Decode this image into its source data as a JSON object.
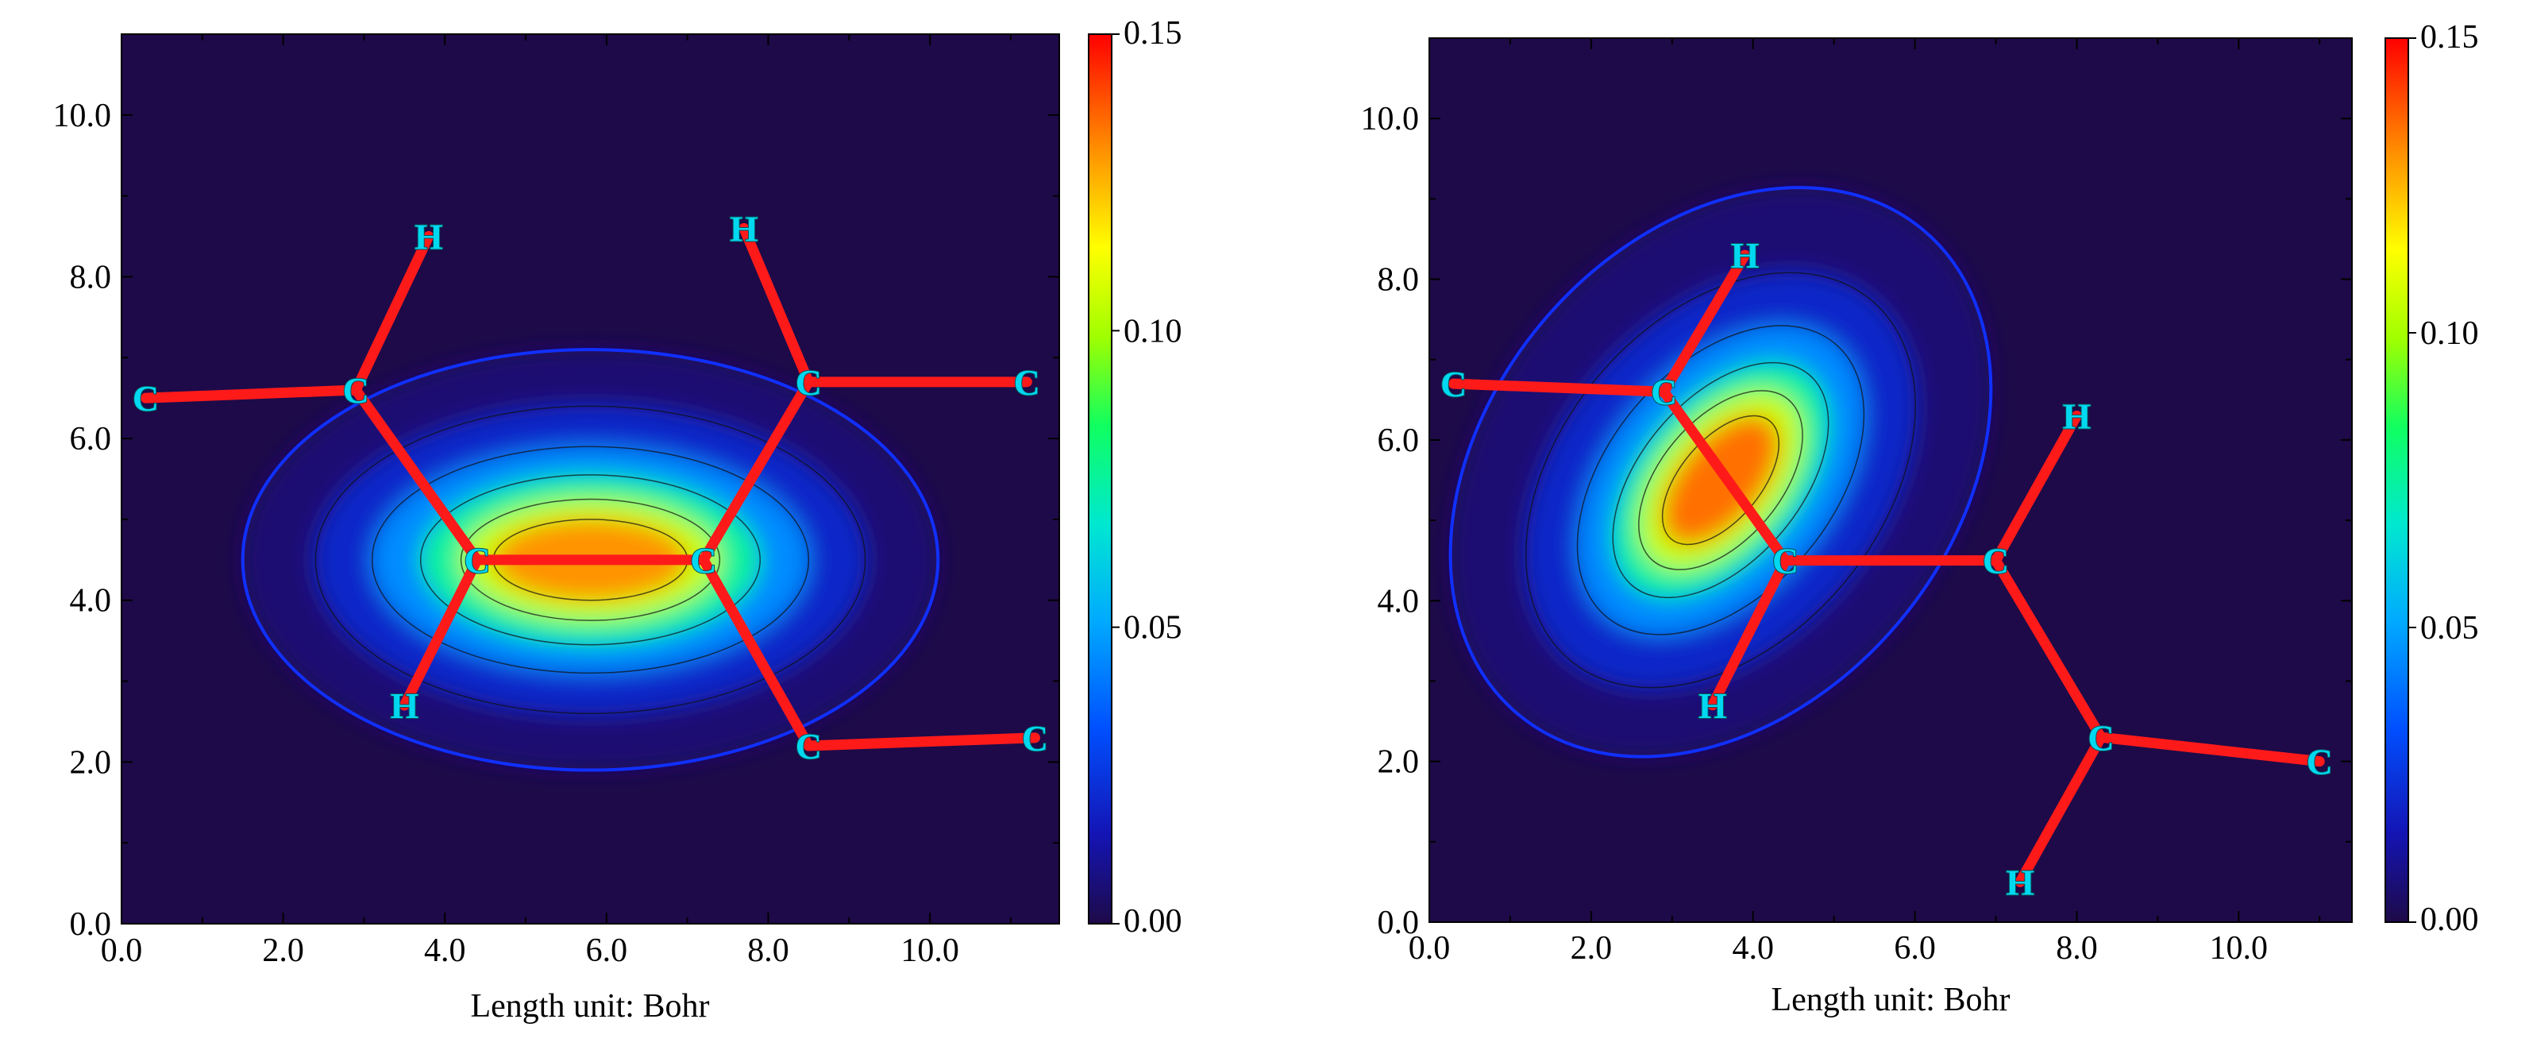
{
  "chart_data": [
    {
      "type": "heatmap",
      "subtype": "contour-map",
      "title": "",
      "xlabel": "Length unit: Bohr",
      "ylabel": "",
      "xlim": [
        0.0,
        11.6
      ],
      "ylim": [
        0.0,
        11.0
      ],
      "xticks": [
        "0.0",
        "2.0",
        "4.0",
        "6.0",
        "8.0",
        "10.0"
      ],
      "yticks": [
        "0.0",
        "2.0",
        "4.0",
        "6.0",
        "8.0",
        "10.0"
      ],
      "colorbar": {
        "min": 0.0,
        "max": 0.15,
        "ticks": [
          "0.00",
          "0.05",
          "0.10",
          "0.15"
        ]
      },
      "grid": false,
      "atoms": [
        {
          "label": "C",
          "x": 0.3,
          "y": 6.5
        },
        {
          "label": "C",
          "x": 2.9,
          "y": 6.6
        },
        {
          "label": "H",
          "x": 3.8,
          "y": 8.5
        },
        {
          "label": "C",
          "x": 4.4,
          "y": 4.5
        },
        {
          "label": "H",
          "x": 3.5,
          "y": 2.7
        },
        {
          "label": "C",
          "x": 7.2,
          "y": 4.5
        },
        {
          "label": "C",
          "x": 8.5,
          "y": 6.7
        },
        {
          "label": "H",
          "x": 7.7,
          "y": 8.6
        },
        {
          "label": "C",
          "x": 11.2,
          "y": 6.7
        },
        {
          "label": "C",
          "x": 8.5,
          "y": 2.2
        },
        {
          "label": "C",
          "x": 11.3,
          "y": 2.3
        }
      ],
      "bonds": [
        [
          0,
          1
        ],
        [
          1,
          2
        ],
        [
          1,
          3
        ],
        [
          3,
          4
        ],
        [
          3,
          5
        ],
        [
          5,
          6
        ],
        [
          6,
          7
        ],
        [
          6,
          8
        ],
        [
          5,
          9
        ],
        [
          9,
          10
        ]
      ],
      "density_lobes": [
        {
          "cx": 5.8,
          "cy": 4.5,
          "rx": 4.3,
          "ry": 2.6,
          "angle_deg": 0,
          "value": 0.006
        },
        {
          "cx": 5.8,
          "cy": 4.5,
          "rx": 3.4,
          "ry": 1.9,
          "angle_deg": 0,
          "value": 0.02
        },
        {
          "cx": 5.8,
          "cy": 4.5,
          "rx": 2.7,
          "ry": 1.4,
          "angle_deg": 0,
          "value": 0.045
        },
        {
          "cx": 5.8,
          "cy": 4.5,
          "rx": 2.1,
          "ry": 1.05,
          "angle_deg": 0,
          "value": 0.075
        },
        {
          "cx": 5.8,
          "cy": 4.5,
          "rx": 1.6,
          "ry": 0.75,
          "angle_deg": 0,
          "value": 0.105
        },
        {
          "cx": 5.8,
          "cy": 4.5,
          "rx": 1.2,
          "ry": 0.5,
          "angle_deg": 0,
          "value": 0.13
        }
      ]
    },
    {
      "type": "heatmap",
      "subtype": "contour-map",
      "title": "",
      "xlabel": "Length unit: Bohr",
      "ylabel": "",
      "xlim": [
        0.0,
        11.4
      ],
      "ylim": [
        0.0,
        11.0
      ],
      "xticks": [
        "0.0",
        "2.0",
        "4.0",
        "6.0",
        "8.0",
        "10.0"
      ],
      "yticks": [
        "0.0",
        "2.0",
        "4.0",
        "6.0",
        "8.0",
        "10.0"
      ],
      "colorbar": {
        "min": 0.0,
        "max": 0.15,
        "ticks": [
          "0.00",
          "0.05",
          "0.10",
          "0.15"
        ]
      },
      "grid": false,
      "atoms": [
        {
          "label": "C",
          "x": 0.3,
          "y": 6.7
        },
        {
          "label": "C",
          "x": 2.9,
          "y": 6.6
        },
        {
          "label": "H",
          "x": 3.9,
          "y": 8.3
        },
        {
          "label": "C",
          "x": 4.4,
          "y": 4.5
        },
        {
          "label": "H",
          "x": 3.5,
          "y": 2.7
        },
        {
          "label": "C",
          "x": 7.0,
          "y": 4.5
        },
        {
          "label": "H",
          "x": 8.0,
          "y": 6.3
        },
        {
          "label": "C",
          "x": 8.3,
          "y": 2.3
        },
        {
          "label": "H",
          "x": 7.3,
          "y": 0.5
        },
        {
          "label": "C",
          "x": 11.0,
          "y": 2.0
        }
      ],
      "bonds": [
        [
          0,
          1
        ],
        [
          1,
          2
        ],
        [
          1,
          3
        ],
        [
          3,
          4
        ],
        [
          3,
          5
        ],
        [
          5,
          6
        ],
        [
          5,
          7
        ],
        [
          7,
          8
        ],
        [
          7,
          9
        ]
      ],
      "density_lobes": [
        {
          "cx": 3.6,
          "cy": 5.6,
          "rx": 3.9,
          "ry": 2.9,
          "angle_deg": -50,
          "value": 0.006
        },
        {
          "cx": 3.6,
          "cy": 5.5,
          "rx": 2.9,
          "ry": 2.0,
          "angle_deg": -50,
          "value": 0.02
        },
        {
          "cx": 3.6,
          "cy": 5.5,
          "rx": 2.2,
          "ry": 1.4,
          "angle_deg": -50,
          "value": 0.045
        },
        {
          "cx": 3.6,
          "cy": 5.5,
          "rx": 1.7,
          "ry": 1.0,
          "angle_deg": -50,
          "value": 0.075
        },
        {
          "cx": 3.6,
          "cy": 5.5,
          "rx": 1.3,
          "ry": 0.75,
          "angle_deg": -50,
          "value": 0.105
        },
        {
          "cx": 3.6,
          "cy": 5.5,
          "rx": 0.95,
          "ry": 0.5,
          "angle_deg": -50,
          "value": 0.135
        }
      ]
    }
  ]
}
